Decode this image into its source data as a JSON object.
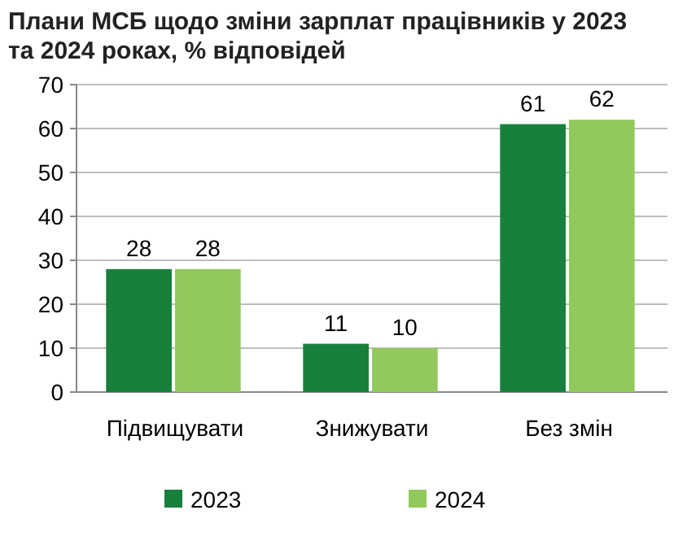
{
  "chart_data": {
    "type": "bar",
    "title": "Плани МСБ щодо зміни зарплат працівників у 2023 та 2024 роках, % відповідей",
    "categories": [
      "Підвищувати",
      "Знижувати",
      "Без змін"
    ],
    "series": [
      {
        "name": "2023",
        "color": "#17803d",
        "values": [
          28,
          11,
          61
        ]
      },
      {
        "name": "2024",
        "color": "#92c95c",
        "values": [
          28,
          10,
          62
        ]
      }
    ],
    "ylim": [
      0,
      70
    ],
    "yticks": [
      0,
      10,
      20,
      30,
      40,
      50,
      60,
      70
    ],
    "grid": "y",
    "legend": "bottom",
    "data_labels": true
  }
}
